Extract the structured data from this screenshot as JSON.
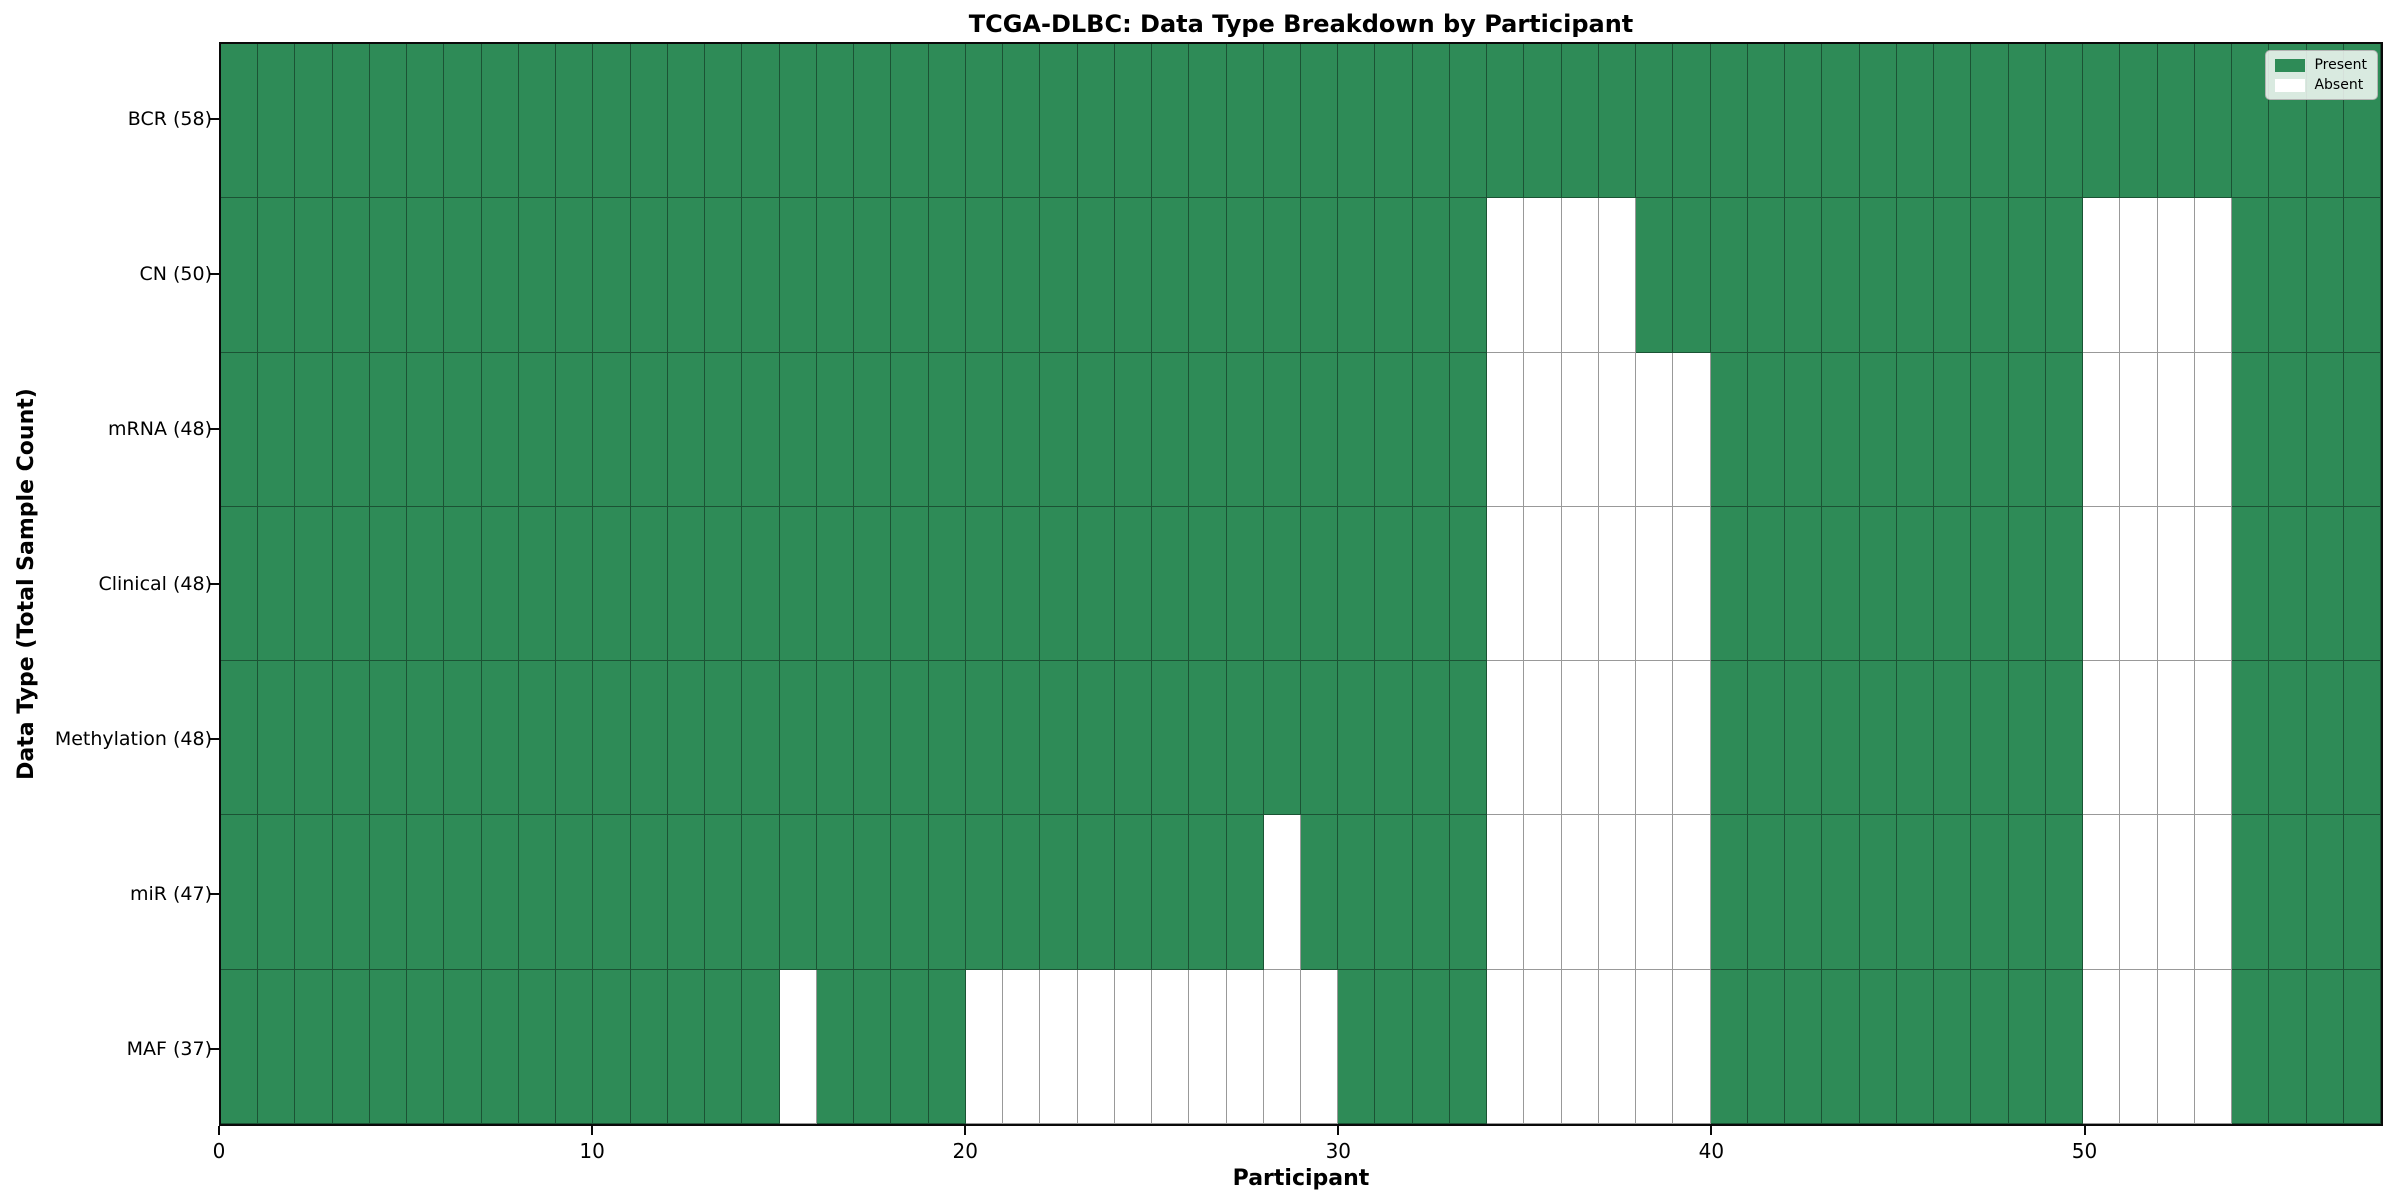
{
  "chart_data": {
    "type": "heatmap",
    "title": "TCGA-DLBC: Data Type Breakdown by Participant",
    "xlabel": "Participant",
    "ylabel": "Data Type (Total Sample Count)",
    "n_participants": 58,
    "xlim": [
      0,
      58
    ],
    "x_ticks": [
      0,
      10,
      20,
      30,
      40,
      50
    ],
    "grid": true,
    "legend_position": "upper-right",
    "legend": {
      "entries": [
        {
          "label": "Present",
          "color": "#2e8b57"
        },
        {
          "label": "Absent",
          "color": "#ffffff"
        }
      ]
    },
    "colors": {
      "present": "#2e8b57",
      "absent": "#ffffff",
      "grid_line": "rgba(0,0,0,0.40)",
      "spine": "#0a0a0a"
    },
    "rows": [
      {
        "label": "BCR (58)",
        "data_type": "BCR",
        "total_samples": 58,
        "absent_participants": []
      },
      {
        "label": "CN (50)",
        "data_type": "CN",
        "total_samples": 50,
        "absent_participants": [
          34,
          35,
          36,
          37,
          50,
          51,
          52,
          53
        ]
      },
      {
        "label": "mRNA (48)",
        "data_type": "mRNA",
        "total_samples": 48,
        "absent_participants": [
          34,
          35,
          36,
          37,
          38,
          39,
          50,
          51,
          52,
          53
        ]
      },
      {
        "label": "Clinical (48)",
        "data_type": "Clinical",
        "total_samples": 48,
        "absent_participants": [
          34,
          35,
          36,
          37,
          38,
          39,
          50,
          51,
          52,
          53
        ]
      },
      {
        "label": "Methylation (48)",
        "data_type": "Methylation",
        "total_samples": 48,
        "absent_participants": [
          34,
          35,
          36,
          37,
          38,
          39,
          50,
          51,
          52,
          53
        ]
      },
      {
        "label": "miR (47)",
        "data_type": "miR",
        "total_samples": 47,
        "absent_participants": [
          28,
          34,
          35,
          36,
          37,
          38,
          39,
          50,
          51,
          52,
          53
        ]
      },
      {
        "label": "MAF (37)",
        "data_type": "MAF",
        "total_samples": 37,
        "absent_participants": [
          15,
          20,
          21,
          22,
          23,
          24,
          25,
          26,
          27,
          28,
          29,
          34,
          35,
          36,
          37,
          38,
          39,
          50,
          51,
          52,
          53
        ]
      }
    ]
  }
}
